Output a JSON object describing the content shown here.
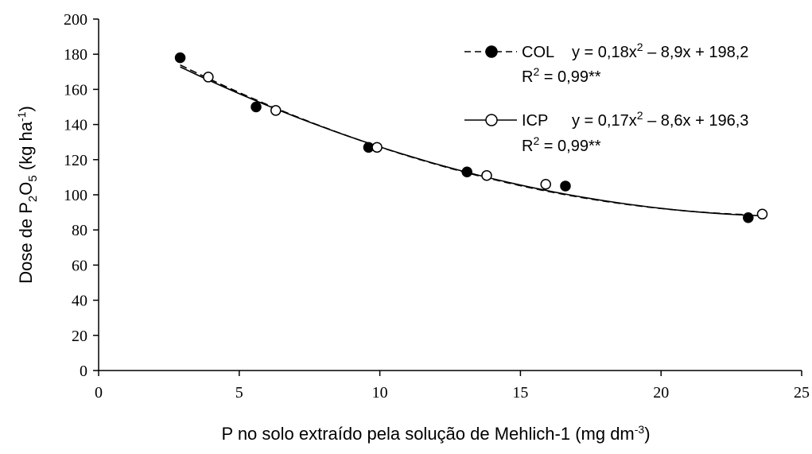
{
  "chart_data": {
    "type": "scatter",
    "title": "",
    "xlabel": {
      "main": "P no solo extraído pela solução de Mehlich-1 (mg dm",
      "sup": "-3",
      "tail": ")"
    },
    "ylabel": {
      "p1": "Dose de P",
      "sub1": "2",
      "p2": "O",
      "sub2": "5",
      "p3": " (kg ha",
      "sup": "-1",
      "p4": ")"
    },
    "xlim": [
      0,
      25
    ],
    "ylim": [
      0,
      200
    ],
    "xticks": [
      0,
      5,
      10,
      15,
      20,
      25
    ],
    "yticks": [
      0,
      20,
      40,
      60,
      80,
      100,
      120,
      140,
      160,
      180,
      200
    ],
    "grid": false,
    "legend_position": "top-right",
    "series": [
      {
        "name": "COL",
        "marker": "filled-circle",
        "line": "dashed",
        "color": "#000000",
        "points": [
          {
            "x": 2.9,
            "y": 178
          },
          {
            "x": 5.6,
            "y": 150
          },
          {
            "x": 9.6,
            "y": 127
          },
          {
            "x": 13.1,
            "y": 113
          },
          {
            "x": 16.6,
            "y": 105
          },
          {
            "x": 23.1,
            "y": 87
          }
        ],
        "fit": {
          "a": 0.18,
          "b": -8.9,
          "c": 198.2,
          "xrange": [
            2.9,
            23.1
          ]
        },
        "equation": {
          "pre": "y = 0,18x",
          "sup": "2",
          "post": " – 8,9x + 198,2"
        },
        "r2": {
          "pre": "R",
          "sup": "2",
          "post": " = 0,99**"
        }
      },
      {
        "name": "ICP",
        "marker": "open-circle",
        "line": "solid",
        "color": "#000000",
        "points": [
          {
            "x": 3.9,
            "y": 167
          },
          {
            "x": 6.3,
            "y": 148
          },
          {
            "x": 9.9,
            "y": 127
          },
          {
            "x": 13.8,
            "y": 111
          },
          {
            "x": 15.9,
            "y": 106
          },
          {
            "x": 23.6,
            "y": 89
          }
        ],
        "fit": {
          "a": 0.17,
          "b": -8.6,
          "c": 196.3,
          "xrange": [
            2.9,
            23.6
          ]
        },
        "equation": {
          "pre": "y = 0,17x",
          "sup": "2",
          "post": " – 8,6x + 196,3"
        },
        "r2": {
          "pre": "R",
          "sup": "2",
          "post": " = 0,99**"
        }
      }
    ]
  }
}
